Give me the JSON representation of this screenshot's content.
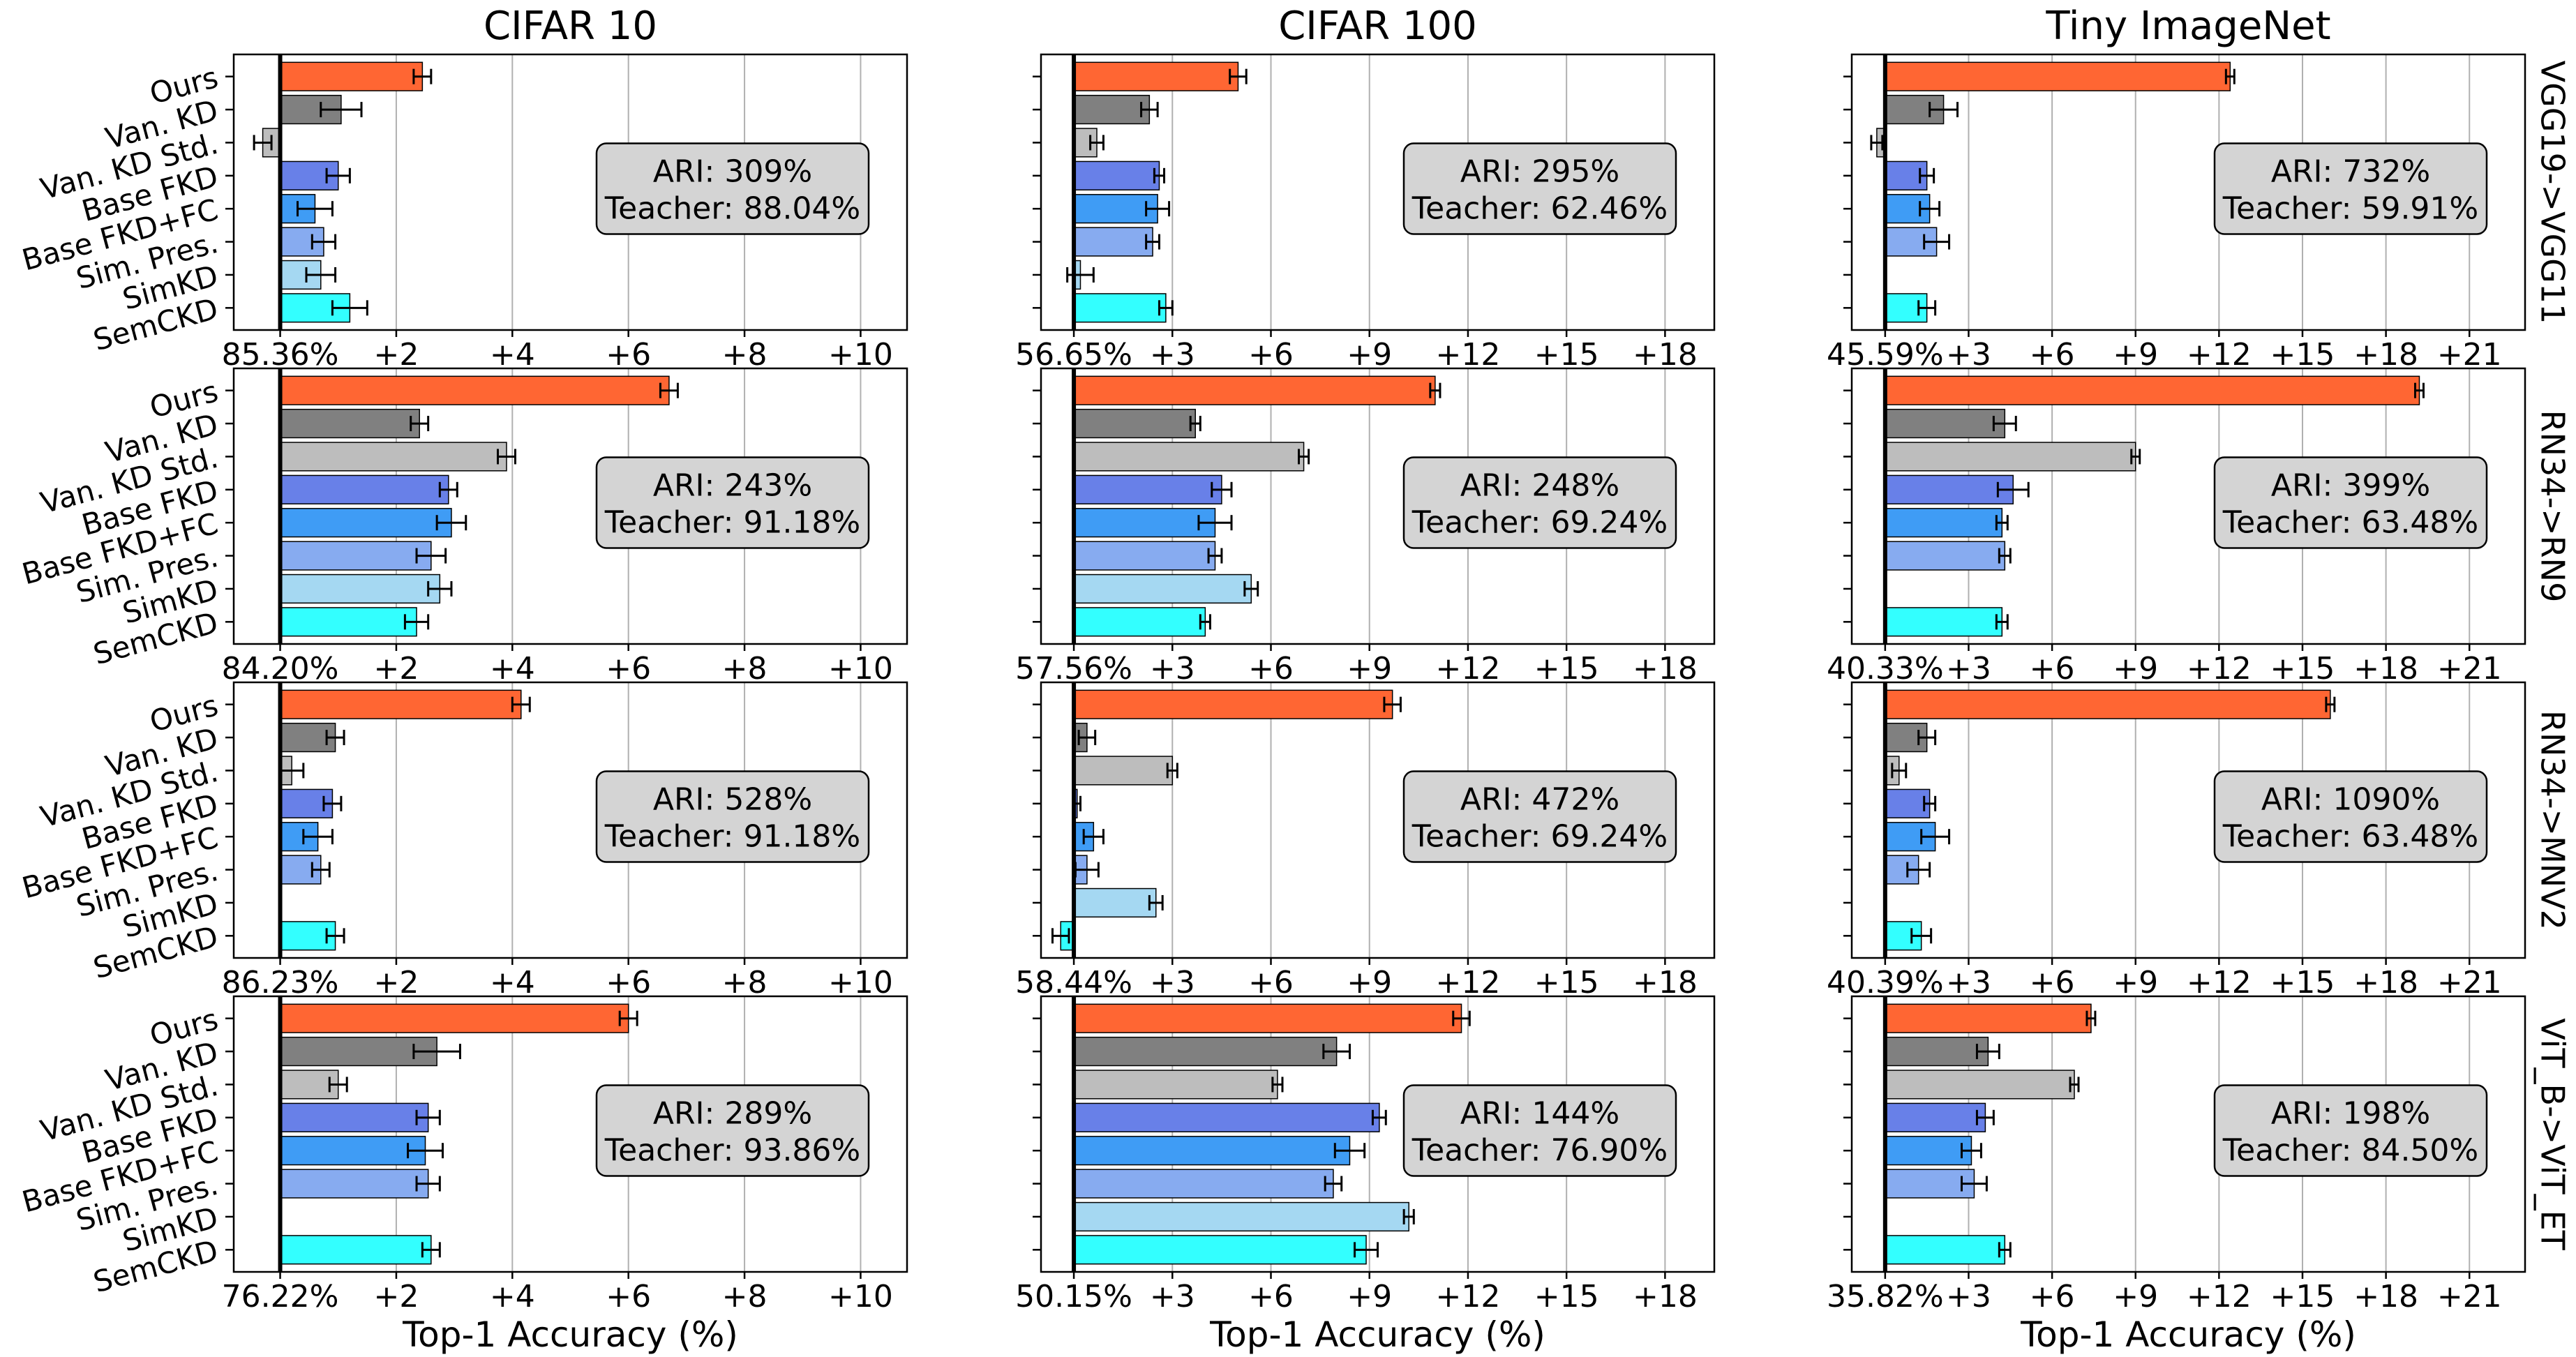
{
  "column_titles": [
    "CIFAR 10",
    "CIFAR 100",
    "Tiny ImageNet"
  ],
  "row_labels": [
    "VGG19->VGG11",
    "RN34->RN9",
    "RN34->MNV2",
    "ViT_B->ViT_ET"
  ],
  "xlabel": "Top-1 Accuracy (%)",
  "methods": [
    "Ours",
    "Van. KD",
    "Van. KD Std.",
    "Base FKD",
    "Base FKD+FC",
    "Sim. Pres.",
    "SimKD",
    "SemCKD"
  ],
  "colors": [
    "#ff6633",
    "#808080",
    "#bdbdbd",
    "#6880e8",
    "#3f9cf5",
    "#87abf0",
    "#a5d8f2",
    "#33ffff"
  ],
  "chart_data": [
    {
      "type": "bar",
      "orientation": "horizontal",
      "row": 0,
      "col": 0,
      "baseline": "85.36%",
      "xlim": [
        -0.8,
        10.8
      ],
      "xticks": [
        2,
        4,
        6,
        8,
        10
      ],
      "ari": "ARI: 309%",
      "teacher": "Teacher: 88.04%",
      "values": [
        2.45,
        1.05,
        -0.3,
        1.0,
        0.6,
        0.75,
        0.7,
        1.2
      ],
      "errors": [
        0.15,
        0.35,
        0.15,
        0.2,
        0.3,
        0.2,
        0.25,
        0.3
      ]
    },
    {
      "type": "bar",
      "orientation": "horizontal",
      "row": 0,
      "col": 1,
      "baseline": "56.65%",
      "xlim": [
        -1.0,
        19.5
      ],
      "xticks": [
        3,
        6,
        9,
        12,
        15,
        18
      ],
      "ari": "ARI: 295%",
      "teacher": "Teacher: 62.46%",
      "values": [
        5.0,
        2.3,
        0.7,
        2.6,
        2.55,
        2.4,
        0.2,
        2.8
      ],
      "errors": [
        0.25,
        0.25,
        0.2,
        0.15,
        0.35,
        0.2,
        0.4,
        0.2
      ]
    },
    {
      "type": "bar",
      "orientation": "horizontal",
      "row": 0,
      "col": 2,
      "baseline": "45.59%",
      "xlim": [
        -1.2,
        23.0
      ],
      "xticks": [
        3,
        6,
        9,
        12,
        15,
        18,
        21
      ],
      "ari": "ARI: 732%",
      "teacher": "Teacher: 59.91%",
      "values": [
        12.4,
        2.1,
        -0.3,
        1.5,
        1.6,
        1.85,
        0.0,
        1.5
      ],
      "errors": [
        0.15,
        0.5,
        0.2,
        0.25,
        0.35,
        0.45,
        0.0,
        0.3
      ]
    },
    {
      "type": "bar",
      "orientation": "horizontal",
      "row": 1,
      "col": 0,
      "baseline": "84.20%",
      "xlim": [
        -0.8,
        10.8
      ],
      "xticks": [
        2,
        4,
        6,
        8,
        10
      ],
      "ari": "ARI: 243%",
      "teacher": "Teacher: 91.18%",
      "values": [
        6.7,
        2.4,
        3.9,
        2.9,
        2.95,
        2.6,
        2.75,
        2.35
      ],
      "errors": [
        0.15,
        0.15,
        0.15,
        0.15,
        0.25,
        0.25,
        0.2,
        0.2
      ]
    },
    {
      "type": "bar",
      "orientation": "horizontal",
      "row": 1,
      "col": 1,
      "baseline": "57.56%",
      "xlim": [
        -1.0,
        19.5
      ],
      "xticks": [
        3,
        6,
        9,
        12,
        15,
        18
      ],
      "ari": "ARI: 248%",
      "teacher": "Teacher: 69.24%",
      "values": [
        11.0,
        3.7,
        7.0,
        4.5,
        4.3,
        4.3,
        5.4,
        4.0
      ],
      "errors": [
        0.15,
        0.15,
        0.15,
        0.3,
        0.5,
        0.2,
        0.2,
        0.15
      ]
    },
    {
      "type": "bar",
      "orientation": "horizontal",
      "row": 1,
      "col": 2,
      "baseline": "40.33%",
      "xlim": [
        -1.2,
        23.0
      ],
      "xticks": [
        3,
        6,
        9,
        12,
        15,
        18,
        21
      ],
      "ari": "ARI: 399%",
      "teacher": "Teacher: 63.48%",
      "values": [
        19.2,
        4.3,
        9.0,
        4.6,
        4.2,
        4.3,
        0.0,
        4.2
      ],
      "errors": [
        0.15,
        0.4,
        0.15,
        0.55,
        0.2,
        0.2,
        0.0,
        0.2
      ]
    },
    {
      "type": "bar",
      "orientation": "horizontal",
      "row": 2,
      "col": 0,
      "baseline": "86.23%",
      "xlim": [
        -0.8,
        10.8
      ],
      "xticks": [
        2,
        4,
        6,
        8,
        10
      ],
      "ari": "ARI: 528%",
      "teacher": "Teacher: 91.18%",
      "values": [
        4.15,
        0.95,
        0.2,
        0.9,
        0.65,
        0.7,
        0.0,
        0.95
      ],
      "errors": [
        0.15,
        0.15,
        0.2,
        0.15,
        0.25,
        0.15,
        0.0,
        0.15
      ]
    },
    {
      "type": "bar",
      "orientation": "horizontal",
      "row": 2,
      "col": 1,
      "baseline": "58.44%",
      "xlim": [
        -1.0,
        19.5
      ],
      "xticks": [
        3,
        6,
        9,
        12,
        15,
        18
      ],
      "ari": "ARI: 472%",
      "teacher": "Teacher: 69.24%",
      "values": [
        9.7,
        0.4,
        3.0,
        0.1,
        0.6,
        0.4,
        2.5,
        -0.4
      ],
      "errors": [
        0.25,
        0.25,
        0.15,
        0.1,
        0.3,
        0.35,
        0.2,
        0.25
      ]
    },
    {
      "type": "bar",
      "orientation": "horizontal",
      "row": 2,
      "col": 2,
      "baseline": "40.39%",
      "xlim": [
        -1.2,
        23.0
      ],
      "xticks": [
        3,
        6,
        9,
        12,
        15,
        18,
        21
      ],
      "ari": "ARI: 1090%",
      "teacher": "Teacher: 63.48%",
      "values": [
        16.0,
        1.5,
        0.5,
        1.6,
        1.8,
        1.2,
        0.0,
        1.3
      ],
      "errors": [
        0.15,
        0.3,
        0.25,
        0.2,
        0.5,
        0.4,
        0.0,
        0.35
      ]
    },
    {
      "type": "bar",
      "orientation": "horizontal",
      "row": 3,
      "col": 0,
      "baseline": "76.22%",
      "xlim": [
        -0.8,
        10.8
      ],
      "xticks": [
        2,
        4,
        6,
        8,
        10
      ],
      "ari": "ARI: 289%",
      "teacher": "Teacher: 93.86%",
      "values": [
        6.0,
        2.7,
        1.0,
        2.55,
        2.5,
        2.55,
        0.0,
        2.6
      ],
      "errors": [
        0.15,
        0.4,
        0.15,
        0.2,
        0.3,
        0.2,
        0.0,
        0.15
      ]
    },
    {
      "type": "bar",
      "orientation": "horizontal",
      "row": 3,
      "col": 1,
      "baseline": "50.15%",
      "xlim": [
        -1.0,
        19.5
      ],
      "xticks": [
        3,
        6,
        9,
        12,
        15,
        18
      ],
      "ari": "ARI: 144%",
      "teacher": "Teacher: 76.90%",
      "values": [
        11.8,
        8.0,
        6.2,
        9.3,
        8.4,
        7.9,
        10.2,
        8.9
      ],
      "errors": [
        0.25,
        0.4,
        0.15,
        0.2,
        0.45,
        0.25,
        0.15,
        0.35
      ]
    },
    {
      "type": "bar",
      "orientation": "horizontal",
      "row": 3,
      "col": 2,
      "baseline": "35.82%",
      "xlim": [
        -1.2,
        23.0
      ],
      "xticks": [
        3,
        6,
        9,
        12,
        15,
        18,
        21
      ],
      "ari": "ARI: 198%",
      "teacher": "Teacher: 84.50%",
      "values": [
        7.4,
        3.7,
        6.8,
        3.6,
        3.1,
        3.2,
        0.0,
        4.3
      ],
      "errors": [
        0.15,
        0.4,
        0.15,
        0.3,
        0.35,
        0.45,
        0.0,
        0.2
      ]
    }
  ]
}
